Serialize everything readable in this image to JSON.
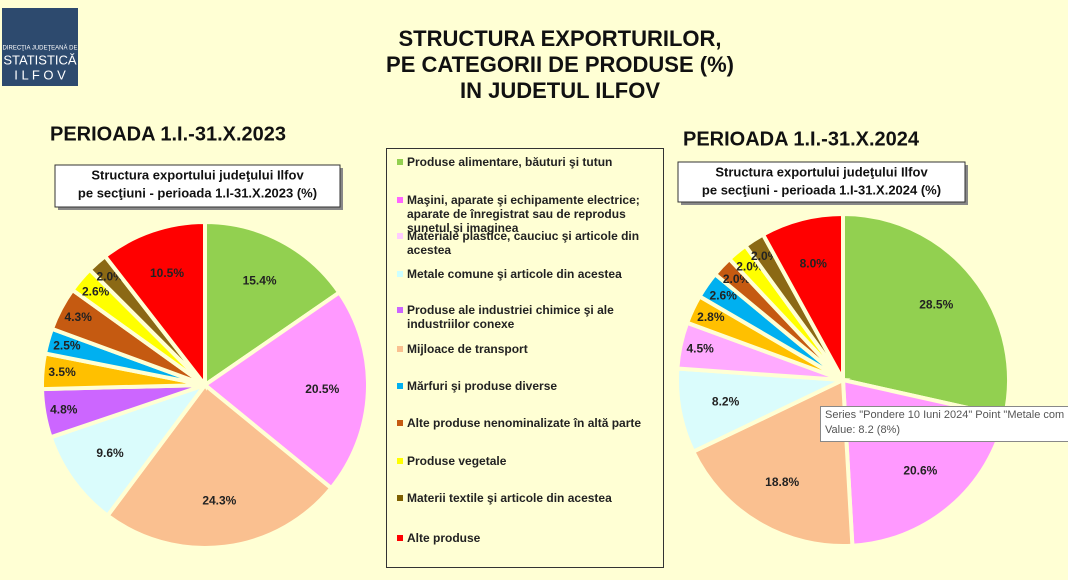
{
  "header": {
    "logo": [
      "DIRECŢIA JUDEŢEANĂ DE",
      "STATISTICĂ",
      "I L F O V"
    ],
    "title": [
      "STRUCTURA EXPORTURILOR,",
      "PE CATEGORII DE PRODUSE (%)",
      "IN JUDETUL ILFOV"
    ]
  },
  "chart_data": [
    {
      "type": "pie",
      "heading": "PERIOADA 1.I.-31.X.2023",
      "title": [
        "Structura exportului judeţului Ilfov",
        "pe secţiuni - perioada 1.I-31.X.2023 (%)"
      ],
      "values": [
        15.4,
        20.5,
        24.3,
        9.6,
        4.8,
        3.5,
        2.5,
        4.3,
        2.6,
        2.0,
        10.5
      ],
      "value_labels": [
        "15.4%",
        "20.5%",
        "24.3%",
        "9.6%",
        "4.8%",
        "3.5%",
        "2.5%",
        "4.3%",
        "2.6%",
        "2.0%",
        "10.5%"
      ],
      "colors": [
        "#92d050",
        "#ff99ff",
        "#fac090",
        "#dafcfc",
        "#cc66ff",
        "#ffc000",
        "#00b0f0",
        "#c55a11",
        "#ffff00",
        "#8b6914",
        "#ff0000"
      ]
    },
    {
      "type": "pie",
      "heading": "PERIOADA 1.I.-31.X.2024",
      "title": [
        "Structura exportului judeţului Ilfov",
        "pe secţiuni - perioada 1.I-31.X.2024 (%)"
      ],
      "values": [
        28.5,
        20.6,
        18.8,
        8.2,
        4.5,
        2.8,
        2.6,
        2.0,
        2.0,
        2.0,
        8.0
      ],
      "value_labels": [
        "28.5%",
        "20.6%",
        "18.8%",
        "8.2%",
        "4.5%",
        "2.8%",
        "2.6%",
        "2.0%",
        "2.0%",
        "2.0%",
        "8.0%"
      ],
      "colors": [
        "#92d050",
        "#ff99ff",
        "#fac090",
        "#dafcfc",
        "#ffaaff",
        "#ffc000",
        "#00b0f0",
        "#c55a11",
        "#ffff00",
        "#8b6914",
        "#ff0000"
      ]
    }
  ],
  "legend": [
    {
      "name": "Produse alimentare, băuturi şi tutun",
      "color": "#92d050"
    },
    {
      "name": "Maşini, aparate şi echipamente electrice; aparate de înregistrat sau de reprodus sunetul şi imaginea",
      "color": "#ff66ff"
    },
    {
      "name": "Materiale plastice, cauciuc şi articole din acestea",
      "color": "#ffccff"
    },
    {
      "name": "Metale comune şi articole din acestea",
      "color": "#ccffff"
    },
    {
      "name": "Produse ale industriei chimice şi ale industriilor conexe",
      "color": "#cc66ff"
    },
    {
      "name": "Mijloace de transport",
      "color": "#fac090"
    },
    {
      "name": "Mărfuri şi produse diverse",
      "color": "#00b0f0"
    },
    {
      "name": "Alte produse nenominalizate în altă parte",
      "color": "#c55a11"
    },
    {
      "name": "Produse vegetale",
      "color": "#ffff00"
    },
    {
      "name": "Materii textile şi articole din acestea",
      "color": "#7f6000"
    },
    {
      "name": "Alte produse",
      "color": "#ff0000"
    }
  ],
  "tooltip": [
    "Series \"Pondere 10 Iuni 2024\" Point \"Metale com",
    "Value: 8.2 (8%)"
  ]
}
